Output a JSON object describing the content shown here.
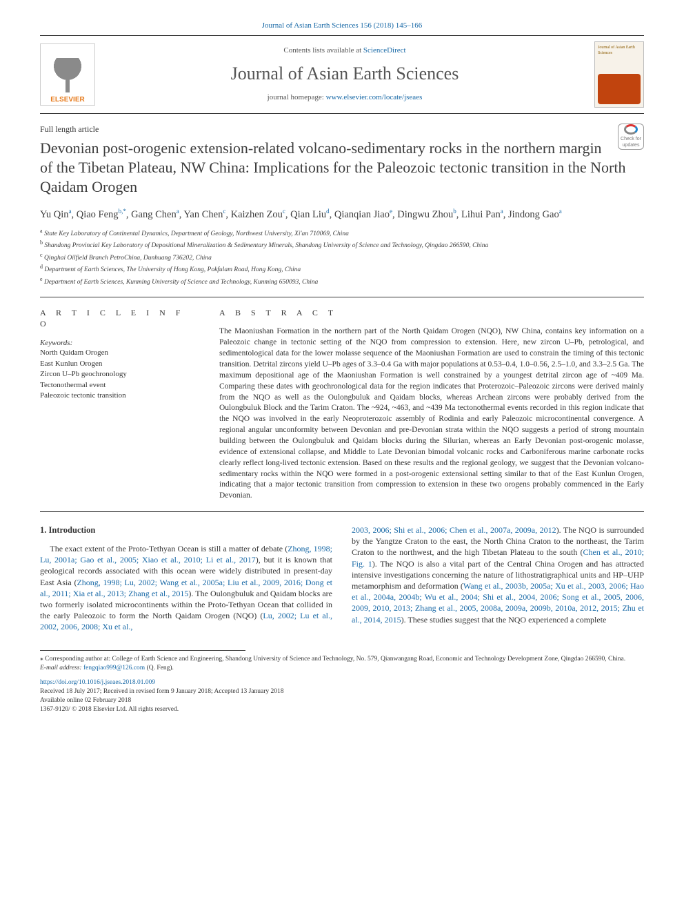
{
  "journal_ref_text": "Journal of Asian Earth Sciences 156 (2018) 145–166",
  "header": {
    "contents_prefix": "Contents lists available at ",
    "contents_link": "ScienceDirect",
    "journal_name": "Journal of Asian Earth Sciences",
    "homepage_prefix": "journal homepage: ",
    "homepage_link": "www.elsevier.com/locate/jseaes",
    "elsevier_label": "ELSEVIER",
    "cover_small_top": "Journal of Asian Earth Sciences"
  },
  "crossmark": {
    "line1": "Check for",
    "line2": "updates"
  },
  "article_type": "Full length article",
  "title": "Devonian post-orogenic extension-related volcano-sedimentary rocks in the northern margin of the Tibetan Plateau, NW China: Implications for the Paleozoic tectonic transition in the North Qaidam Orogen",
  "authors_html": "Yu Qin<sup class='sup-link'>a</sup>, Qiao Feng<sup class='sup-link'>b,*</sup>, Gang Chen<sup class='sup-link'>a</sup>, Yan Chen<sup class='sup-link'>c</sup>, Kaizhen Zou<sup class='sup-link'>c</sup>, Qian Liu<sup class='sup-link'>d</sup>, Qianqian Jiao<sup class='sup-link'>e</sup>, Dingwu Zhou<sup class='sup-link'>b</sup>, Lihui Pan<sup class='sup-link'>a</sup>, Jindong Gao<sup class='sup-link'>a</sup>",
  "affiliations": [
    {
      "sup": "a",
      "text": "State Key Laboratory of Continental Dynamics, Department of Geology, Northwest University, Xi'an 710069, China"
    },
    {
      "sup": "b",
      "text": "Shandong Provincial Key Laboratory of Depositional Mineralization & Sedimentary Minerals, Shandong University of Science and Technology, Qingdao 266590, China"
    },
    {
      "sup": "c",
      "text": "Qinghai Oilfield Branch PetroChina, Dunhuang 736202, China"
    },
    {
      "sup": "d",
      "text": "Department of Earth Sciences, The University of Hong Kong, Pokfulam Road, Hong Kong, China"
    },
    {
      "sup": "e",
      "text": "Department of Earth Sciences, Kunming University of Science and Technology, Kunming 650093, China"
    }
  ],
  "info": {
    "heading": "A R T I C L E  I N F O",
    "kw_label": "Keywords:",
    "keywords": [
      "North Qaidam Orogen",
      "East Kunlun Orogen",
      "Zircon U–Pb geochronology",
      "Tectonothermal event",
      "Paleozoic tectonic transition"
    ]
  },
  "abstract": {
    "heading": "A B S T R A C T",
    "text": "The Maoniushan Formation in the northern part of the North Qaidam Orogen (NQO), NW China, contains key information on a Paleozoic change in tectonic setting of the NQO from compression to extension. Here, new zircon U–Pb, petrological, and sedimentological data for the lower molasse sequence of the Maoniushan Formation are used to constrain the timing of this tectonic transition. Detrital zircons yield U–Pb ages of 3.3–0.4 Ga with major populations at 0.53–0.4, 1.0–0.56, 2.5–1.0, and 3.3–2.5 Ga. The maximum depositional age of the Maoniushan Formation is well constrained by a youngest detrital zircon age of ~409 Ma. Comparing these dates with geochronological data for the region indicates that Proterozoic–Paleozoic zircons were derived mainly from the NQO as well as the Oulongbuluk and Qaidam blocks, whereas Archean zircons were probably derived from the Oulongbuluk Block and the Tarim Craton. The ~924, ~463, and ~439 Ma tectonothermal events recorded in this region indicate that the NQO was involved in the early Neoproterozoic assembly of Rodinia and early Paleozoic microcontinental convergence. A regional angular unconformity between Devonian and pre-Devonian strata within the NQO suggests a period of strong mountain building between the Oulongbuluk and Qaidam blocks during the Silurian, whereas an Early Devonian post-orogenic molasse, evidence of extensional collapse, and Middle to Late Devonian bimodal volcanic rocks and Carboniferous marine carbonate rocks clearly reflect long-lived tectonic extension. Based on these results and the regional geology, we suggest that the Devonian volcano-sedimentary rocks within the NQO were formed in a post-orogenic extensional setting similar to that of the East Kunlun Orogen, indicating that a major tectonic transition from compression to extension in these two orogens probably commenced in the Early Devonian."
  },
  "intro": {
    "heading": "1. Introduction",
    "col1_html": "The exact extent of the Proto-Tethyan Ocean is still a matter of debate (<span class='cite'>Zhong, 1998; Lu, 2001a; Gao et al., 2005; Xiao et al., 2010; Li et al., 2017</span>), but it is known that geological records associated with this ocean were widely distributed in present-day East Asia (<span class='cite'>Zhong, 1998; Lu, 2002; Wang et al., 2005a; Liu et al., 2009, 2016; Dong et al., 2011; Xia et al., 2013; Zhang et al., 2015</span>). The Oulongbuluk and Qaidam blocks are two formerly isolated microcontinents within the Proto-Tethyan Ocean that collided in the early Paleozoic to form the North Qaidam Orogen (NQO) (<span class='cite'>Lu, 2002; Lu et al., 2002, 2006, 2008; Xu et al.,</span>",
    "col2_html": "<span class='cite'>2003, 2006; Shi et al., 2006; Chen et al., 2007a, 2009a, 2012</span>). The NQO is surrounded by the Yangtze Craton to the east, the North China Craton to the northeast, the Tarim Craton to the northwest, and the high Tibetan Plateau to the south (<span class='cite'>Chen et al., 2010; Fig. 1</span>). The NQO is also a vital part of the Central China Orogen and has attracted intensive investigations concerning the nature of lithostratigraphical units and HP–UHP metamorphism and deformation (<span class='cite'>Wang et al., 2003b, 2005a; Xu et al., 2003, 2006; Hao et al., 2004a, 2004b; Wu et al., 2004; Shi et al., 2004, 2006; Song et al., 2005, 2006, 2009, 2010, 2013; Zhang et al., 2005, 2008a, 2009a, 2009b, 2010a, 2012, 2015; Zhu et al., 2014, 2015</span>). These studies suggest that the NQO experienced a complete"
  },
  "footnote": {
    "corr": "⁎ Corresponding author at: College of Earth Science and Engineering, Shandong University of Science and Technology, No. 579, Qianwangang Road, Economic and Technology Development Zone, Qingdao 266590, China.",
    "email_label": "E-mail address: ",
    "email": "fengqiao999@126.com",
    "email_who": " (Q. Feng).",
    "doi": "https://doi.org/10.1016/j.jseaes.2018.01.009",
    "received": "Received 18 July 2017; Received in revised form 9 January 2018; Accepted 13 January 2018",
    "available": "Available online 02 February 2018",
    "copyright": "1367-9120/ © 2018 Elsevier Ltd. All rights reserved."
  }
}
